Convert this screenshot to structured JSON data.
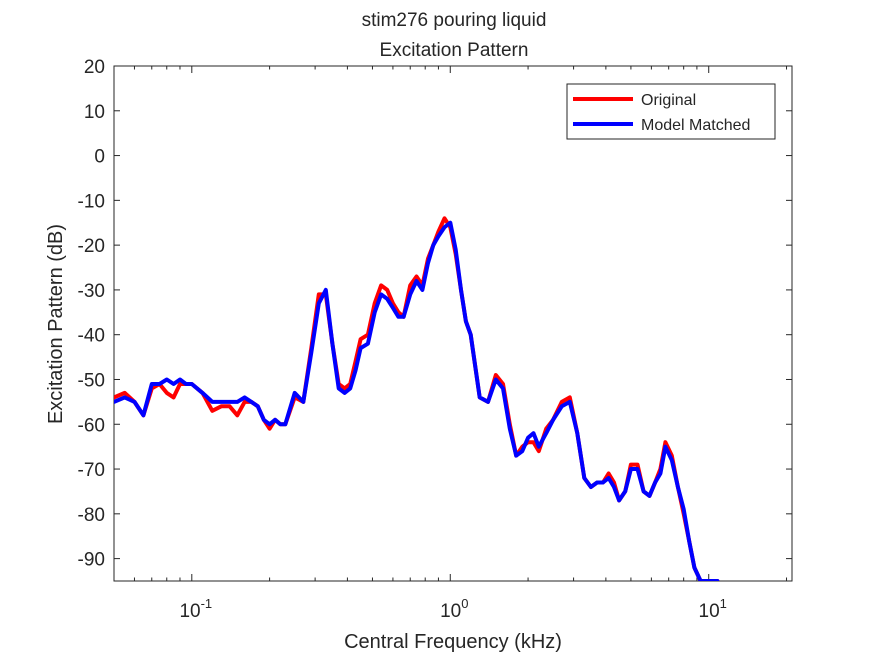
{
  "chart_data": {
    "type": "line",
    "title": "stim276 pouring liquid",
    "subtitle": "Excitation Pattern",
    "xlabel": "Central Frequency (kHz)",
    "ylabel": "Excitation Pattern (dB)",
    "xscale": "log",
    "xlim": [
      0.05,
      21
    ],
    "ylim": [
      -95,
      20
    ],
    "y_ticks": [
      20,
      10,
      0,
      -10,
      -20,
      -30,
      -40,
      -50,
      -60,
      -70,
      -80,
      -90
    ],
    "y_tick_labels": [
      "20",
      "10",
      "0",
      "-10",
      "-20",
      "-30",
      "-40",
      "-50",
      "-60",
      "-70",
      "-80",
      "-90"
    ],
    "x_ticks": [
      0.1,
      1,
      10
    ],
    "x_tick_labels": [
      {
        "base": "10",
        "exp": "-1"
      },
      {
        "base": "10",
        "exp": "0"
      },
      {
        "base": "10",
        "exp": "1"
      }
    ],
    "grid": false,
    "legend_position": "top-right",
    "series": [
      {
        "name": "Original",
        "color": "#ff0000",
        "x": [
          0.05,
          0.055,
          0.06,
          0.065,
          0.07,
          0.075,
          0.08,
          0.085,
          0.09,
          0.095,
          0.1,
          0.11,
          0.12,
          0.13,
          0.14,
          0.15,
          0.16,
          0.17,
          0.18,
          0.19,
          0.2,
          0.21,
          0.22,
          0.23,
          0.25,
          0.27,
          0.29,
          0.31,
          0.33,
          0.35,
          0.37,
          0.39,
          0.41,
          0.43,
          0.45,
          0.48,
          0.51,
          0.54,
          0.57,
          0.6,
          0.63,
          0.66,
          0.7,
          0.74,
          0.78,
          0.82,
          0.86,
          0.9,
          0.95,
          1.0,
          1.05,
          1.1,
          1.15,
          1.2,
          1.3,
          1.4,
          1.5,
          1.6,
          1.7,
          1.8,
          1.9,
          2.0,
          2.1,
          2.2,
          2.35,
          2.5,
          2.7,
          2.9,
          3.1,
          3.3,
          3.5,
          3.7,
          3.9,
          4.1,
          4.3,
          4.5,
          4.75,
          5.0,
          5.3,
          5.6,
          5.9,
          6.2,
          6.5,
          6.8,
          7.2,
          7.6,
          8.0,
          8.4,
          8.8,
          9.3,
          9.8,
          10.3,
          10.8
        ],
        "y": [
          -54,
          -53,
          -55,
          -58,
          -52,
          -51,
          -53,
          -54,
          -51,
          -51,
          -51,
          -53,
          -57,
          -56,
          -56,
          -58,
          -55,
          -55,
          -56,
          -59,
          -61,
          -59,
          -60,
          -60,
          -54,
          -55,
          -43,
          -31,
          -31,
          -42,
          -51,
          -52,
          -51,
          -46,
          -41,
          -40,
          -33,
          -29,
          -30,
          -33,
          -35,
          -36,
          -29,
          -27,
          -29,
          -23,
          -20,
          -17,
          -14,
          -16,
          -22,
          -30,
          -37,
          -40,
          -54,
          -55,
          -49,
          -51,
          -60,
          -67,
          -65,
          -64,
          -64,
          -66,
          -61,
          -59,
          -55,
          -54,
          -62,
          -72,
          -74,
          -73,
          -73,
          -71,
          -73,
          -77,
          -75,
          -69,
          -69,
          -75,
          -76,
          -73,
          -70,
          -64,
          -67,
          -74,
          -80,
          -86,
          -92,
          -95,
          -95,
          -95,
          -95
        ]
      },
      {
        "name": "Model Matched",
        "color": "#0000ff",
        "x": [
          0.05,
          0.055,
          0.06,
          0.065,
          0.07,
          0.075,
          0.08,
          0.085,
          0.09,
          0.095,
          0.1,
          0.11,
          0.12,
          0.13,
          0.14,
          0.15,
          0.16,
          0.17,
          0.18,
          0.19,
          0.2,
          0.21,
          0.22,
          0.23,
          0.25,
          0.27,
          0.29,
          0.31,
          0.33,
          0.35,
          0.37,
          0.39,
          0.41,
          0.43,
          0.45,
          0.48,
          0.51,
          0.54,
          0.57,
          0.6,
          0.63,
          0.66,
          0.7,
          0.74,
          0.78,
          0.82,
          0.86,
          0.9,
          0.95,
          1.0,
          1.05,
          1.1,
          1.15,
          1.2,
          1.3,
          1.4,
          1.5,
          1.6,
          1.7,
          1.8,
          1.9,
          2.0,
          2.1,
          2.2,
          2.35,
          2.5,
          2.7,
          2.9,
          3.1,
          3.3,
          3.5,
          3.7,
          3.9,
          4.1,
          4.3,
          4.5,
          4.75,
          5.0,
          5.3,
          5.6,
          5.9,
          6.2,
          6.5,
          6.8,
          7.2,
          7.6,
          8.0,
          8.4,
          8.8,
          9.3,
          9.8,
          10.3,
          10.8
        ],
        "y": [
          -55,
          -54,
          -55,
          -58,
          -51,
          -51,
          -50,
          -51,
          -50,
          -51,
          -51,
          -53,
          -55,
          -55,
          -55,
          -55,
          -54,
          -55,
          -56,
          -59,
          -60,
          -59,
          -60,
          -60,
          -53,
          -55,
          -44,
          -33,
          -30,
          -42,
          -52,
          -53,
          -52,
          -48,
          -43,
          -42,
          -35,
          -31,
          -32,
          -34,
          -36,
          -36,
          -31,
          -28,
          -30,
          -24,
          -20,
          -18,
          -16,
          -15,
          -21,
          -30,
          -37,
          -40,
          -54,
          -55,
          -50,
          -52,
          -61,
          -67,
          -66,
          -63,
          -62,
          -65,
          -62,
          -59,
          -56,
          -55,
          -62,
          -72,
          -74,
          -73,
          -73,
          -72,
          -74,
          -77,
          -75,
          -70,
          -70,
          -75,
          -76,
          -73,
          -71,
          -65,
          -68,
          -74,
          -79,
          -86,
          -92,
          -95,
          -95,
          -95,
          -95
        ]
      }
    ]
  }
}
